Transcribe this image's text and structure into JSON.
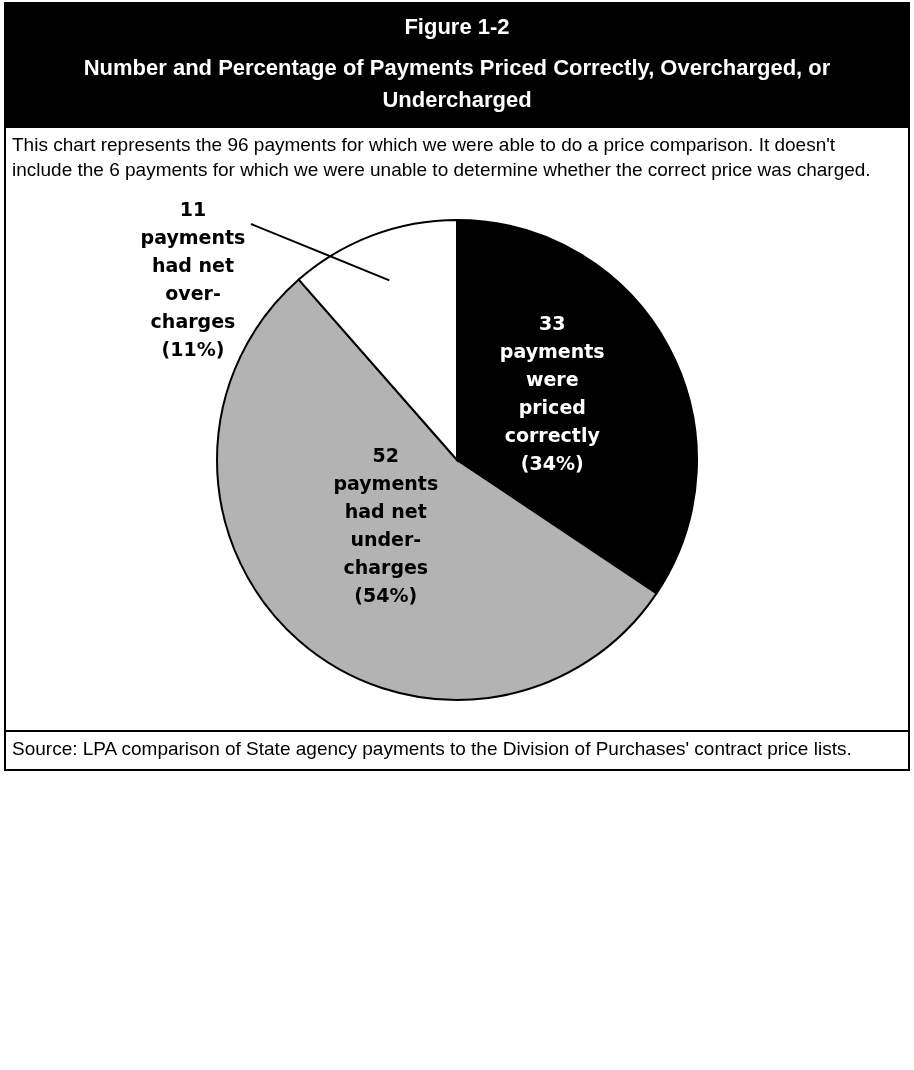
{
  "chart_data": {
    "type": "pie",
    "title": "Figure 1-2",
    "subtitle": "Number and Percentage of Payments Priced Correctly, Overcharged, or Undercharged",
    "categories": [
      "33\npayments\nwere\npriced\ncorrectly\n(34%)",
      "52\npayments\nhad net\nunder-\ncharges\n(54%)",
      "11\npayments\nhad net\nover-\ncharges\n(11%)"
    ],
    "values": [
      33,
      52,
      11
    ],
    "colors": [
      "#000000",
      "#b3b3b3",
      "#ffffff"
    ],
    "annotations": [
      "This chart represents the 96 payments for which we were able to do a price comparison.  It doesn't include the 6 payments for which we were unable to determine whether the correct price was charged.",
      "Source:  LPA comparison of State agency payments to the Division of Purchases' contract price lists."
    ]
  }
}
